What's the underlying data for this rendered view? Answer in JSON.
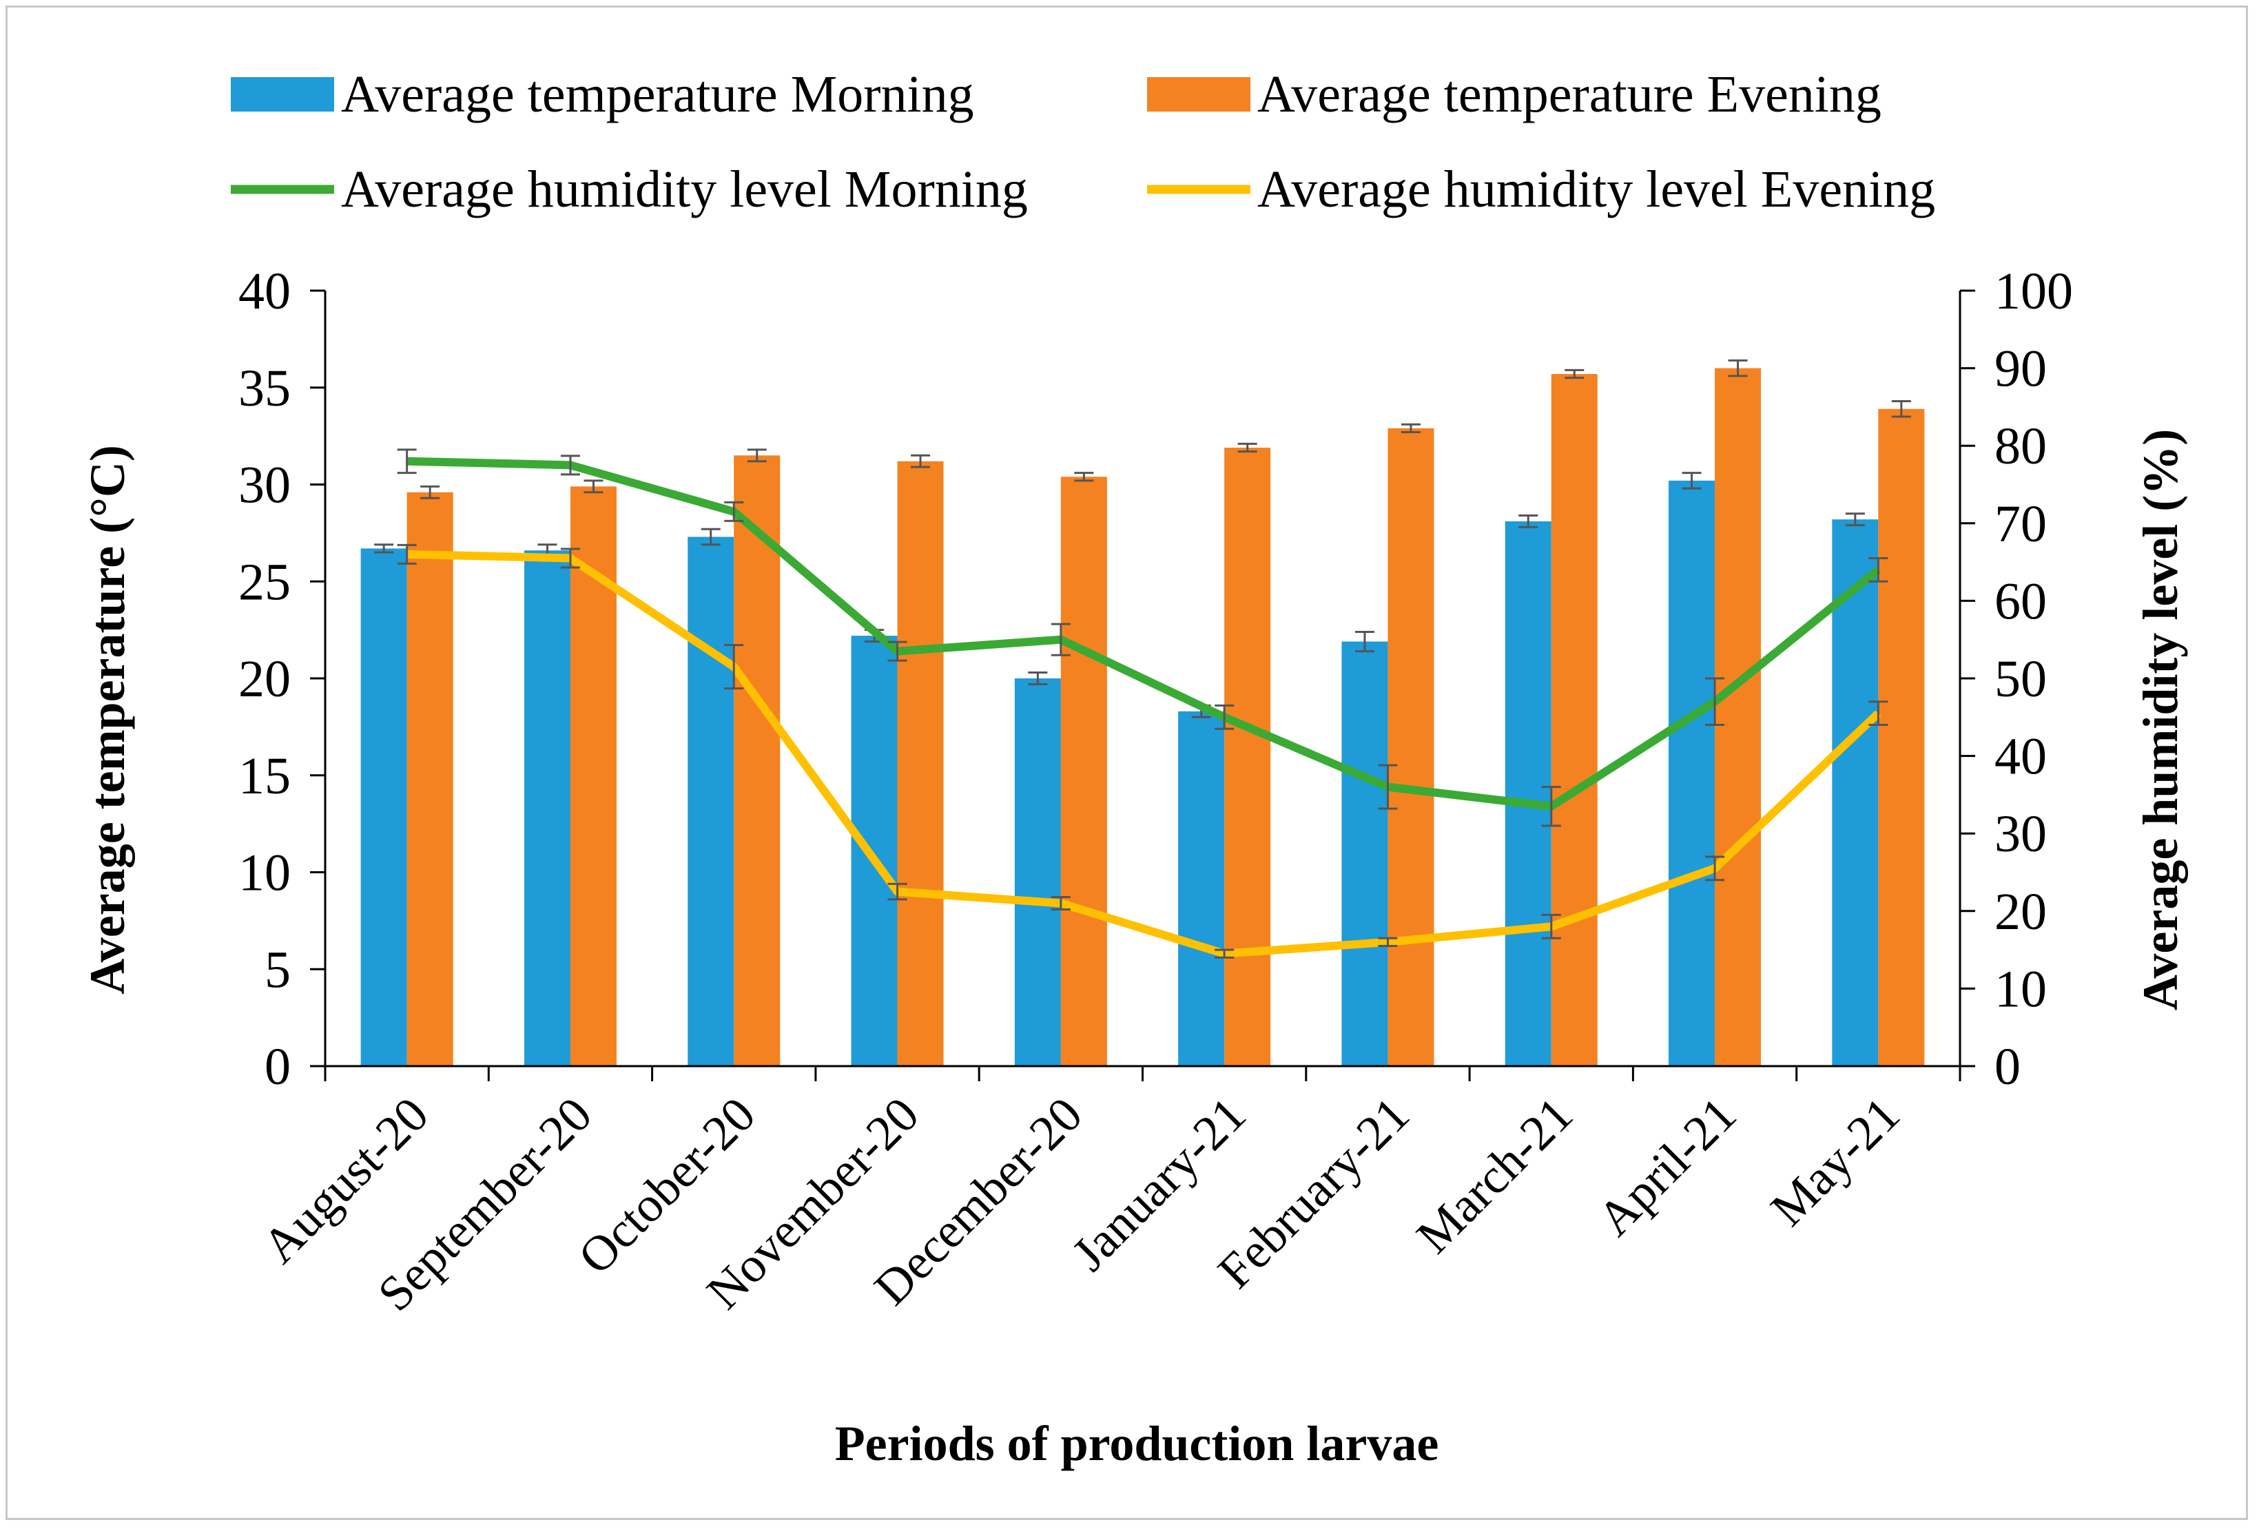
{
  "chart_data": {
    "type": "bar",
    "xlabel": "Periods of production larvae",
    "ylabel": "Average temperature (°C)",
    "y2label": "Average humidity level (%)",
    "ylim": [
      0,
      40
    ],
    "yticks": [
      0,
      5,
      10,
      15,
      20,
      25,
      30,
      35,
      40
    ],
    "y2lim": [
      0,
      100
    ],
    "y2ticks": [
      0,
      10,
      20,
      30,
      40,
      50,
      60,
      70,
      80,
      90,
      100
    ],
    "categories": [
      "August-20",
      "September-20",
      "October-20",
      "November-20",
      "December-20",
      "January-21",
      "February-21",
      "March-21",
      "April-21",
      "May-21"
    ],
    "legend_position": "top",
    "series": [
      {
        "name": "Average temperature Morning",
        "kind": "bar",
        "axis": "left",
        "color": "#1f9bd7",
        "values": [
          26.7,
          26.6,
          27.3,
          22.2,
          20.0,
          18.3,
          21.9,
          28.1,
          30.2,
          28.2
        ],
        "errors": [
          0.2,
          0.3,
          0.4,
          0.3,
          0.3,
          0.3,
          0.5,
          0.3,
          0.4,
          0.3
        ]
      },
      {
        "name": "Average temperature Evening",
        "kind": "bar",
        "axis": "left",
        "color": "#f58220",
        "values": [
          29.6,
          29.9,
          31.5,
          31.2,
          30.4,
          31.9,
          32.9,
          35.7,
          36.0,
          33.9
        ],
        "errors": [
          0.3,
          0.3,
          0.3,
          0.3,
          0.2,
          0.2,
          0.2,
          0.2,
          0.4,
          0.4
        ]
      },
      {
        "name": "Average humidity level Morning",
        "kind": "line",
        "axis": "right",
        "color": "#3aaa35",
        "values": [
          78,
          77.5,
          71.5,
          53.5,
          55,
          45,
          36,
          33.5,
          47,
          64
        ],
        "errors": [
          1.5,
          1.2,
          1.2,
          1.2,
          2.0,
          1.5,
          2.8,
          2.5,
          3.0,
          1.5
        ]
      },
      {
        "name": "Average humidity level Evening",
        "kind": "line",
        "axis": "right",
        "color": "#ffc000",
        "values": [
          66,
          65.5,
          51.5,
          22.5,
          21,
          14.5,
          16,
          18,
          25.5,
          45.5
        ],
        "errors": [
          1.2,
          1.2,
          2.8,
          1.0,
          0.8,
          0.5,
          0.5,
          1.5,
          1.5,
          1.5
        ]
      }
    ]
  }
}
